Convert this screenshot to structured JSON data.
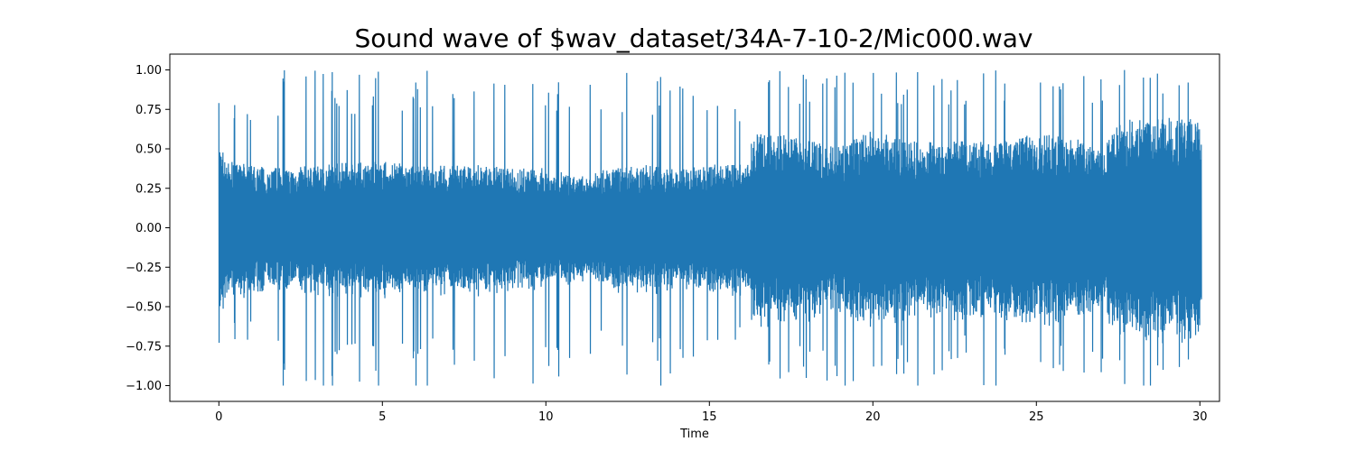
{
  "chart_data": {
    "type": "line",
    "title": "Sound wave of $wav_dataset/34A-7-10-2/Mic000.wav",
    "xlabel": "Time",
    "ylabel": "",
    "xlim": [
      -1.5,
      30.6
    ],
    "ylim": [
      -1.1,
      1.1
    ],
    "x_ticks": [
      0,
      5,
      10,
      15,
      20,
      25,
      30
    ],
    "x_tick_labels": [
      "0",
      "5",
      "10",
      "15",
      "20",
      "25",
      "30"
    ],
    "y_ticks": [
      -1.0,
      -0.75,
      -0.5,
      -0.25,
      0.0,
      0.25,
      0.5,
      0.75,
      1.0
    ],
    "y_tick_labels": [
      "−1.00",
      "−0.75",
      "−0.50",
      "−0.25",
      "0.00",
      "0.25",
      "0.50",
      "0.75",
      "1.00"
    ],
    "grid": false,
    "series": [
      {
        "color": "#1f77b4",
        "x_range": [
          0,
          30.05
        ],
        "envelope": {
          "x": [
            0.0,
            0.3,
            1,
            2,
            3,
            4,
            5,
            6,
            7,
            8,
            9,
            10,
            11,
            12,
            13,
            14,
            15,
            16,
            16.2,
            16.3,
            17,
            18,
            19,
            20,
            21,
            22,
            23,
            24,
            25,
            26,
            27,
            27.5,
            28,
            29,
            30,
            30.05
          ],
          "core": [
            0.55,
            0.42,
            0.4,
            0.38,
            0.4,
            0.42,
            0.42,
            0.4,
            0.4,
            0.4,
            0.38,
            0.38,
            0.32,
            0.38,
            0.4,
            0.38,
            0.4,
            0.4,
            0.4,
            0.6,
            0.6,
            0.55,
            0.52,
            0.62,
            0.55,
            0.55,
            0.55,
            0.55,
            0.6,
            0.58,
            0.5,
            0.65,
            0.7,
            0.7,
            0.7,
            0.6
          ],
          "peak": [
            0.8,
            0.85,
            0.9,
            1.0,
            1.0,
            1.0,
            1.0,
            1.0,
            1.0,
            1.0,
            0.9,
            1.0,
            0.9,
            1.0,
            1.0,
            1.0,
            1.0,
            0.7,
            0.65,
            1.0,
            1.0,
            1.0,
            1.0,
            1.0,
            1.0,
            1.0,
            1.0,
            1.0,
            1.0,
            1.0,
            1.0,
            1.0,
            1.0,
            1.0,
            1.0,
            1.0
          ]
        }
      }
    ]
  }
}
